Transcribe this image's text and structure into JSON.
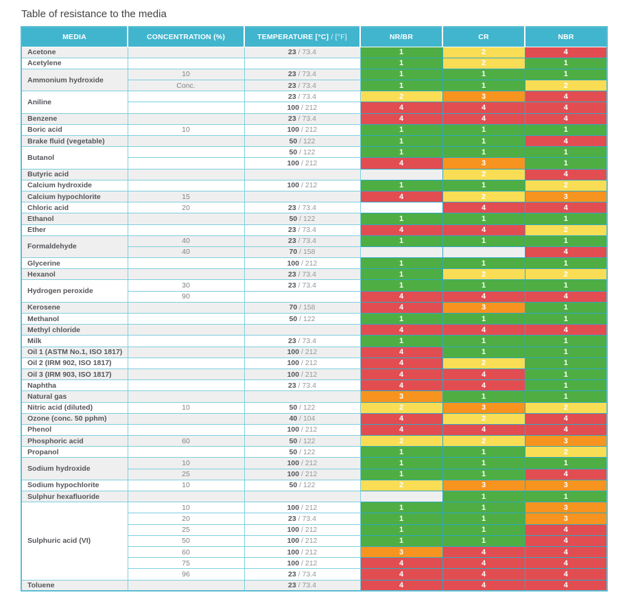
{
  "page_title": "Table of resistance to the media",
  "colors": {
    "header_bg": "#41b5ce",
    "shade_row_bg": "#efefef",
    "plain_row_bg": "#ffffff",
    "grid_border": "#7ccee0",
    "rating_border": "#2ea8c5",
    "rating_1_green": "#4fae43",
    "rating_2_yellow": "#f8dd55",
    "rating_3_orange": "#f6941f",
    "rating_4_red": "#e24d52"
  },
  "header": {
    "media": "MEDIA",
    "concentration": "CONCENTRATION (%)",
    "temperature_main": "TEMPERATURE [°C]",
    "temperature_light": "/ [°F]",
    "nr_br": "NR/BR",
    "cr": "CR",
    "nbr": "NBR"
  },
  "table": {
    "rating_colors": {
      "1": "#4fae43",
      "2": "#f8dd55",
      "3": "#f6941f",
      "4": "#e24d52"
    },
    "groups": [
      {
        "media": "Acetone",
        "rows": [
          {
            "conc": "",
            "temp_c": "23",
            "temp_f": "73.4",
            "nr_br": 1,
            "cr": 2,
            "nbr": 4
          }
        ]
      },
      {
        "media": "Acetylene",
        "rows": [
          {
            "conc": "",
            "temp_c": "",
            "temp_f": "",
            "nr_br": 1,
            "cr": 2,
            "nbr": 1
          }
        ]
      },
      {
        "media": "Ammonium hydroxide",
        "rows": [
          {
            "conc": "10",
            "temp_c": "23",
            "temp_f": "73.4",
            "nr_br": 1,
            "cr": 1,
            "nbr": 1
          },
          {
            "conc": "Conc.",
            "temp_c": "23",
            "temp_f": "73.4",
            "nr_br": 1,
            "cr": 1,
            "nbr": 2
          }
        ]
      },
      {
        "media": "Aniline",
        "rows": [
          {
            "conc": "",
            "temp_c": "23",
            "temp_f": "73.4",
            "nr_br": 2,
            "cr": 3,
            "nbr": 4
          },
          {
            "conc": "",
            "temp_c": "100",
            "temp_f": "212",
            "nr_br": 4,
            "cr": 4,
            "nbr": 4
          }
        ]
      },
      {
        "media": "Benzene",
        "rows": [
          {
            "conc": "",
            "temp_c": "23",
            "temp_f": "73.4",
            "nr_br": 4,
            "cr": 4,
            "nbr": 4
          }
        ]
      },
      {
        "media": "Boric acid",
        "rows": [
          {
            "conc": "10",
            "temp_c": "100",
            "temp_f": "212",
            "nr_br": 1,
            "cr": 1,
            "nbr": 1
          }
        ]
      },
      {
        "media": "Brake fluid (vegetable)",
        "rows": [
          {
            "conc": "",
            "temp_c": "50",
            "temp_f": "122",
            "nr_br": 1,
            "cr": 1,
            "nbr": 4
          }
        ]
      },
      {
        "media": "Butanol",
        "rows": [
          {
            "conc": "",
            "temp_c": "50",
            "temp_f": "122",
            "nr_br": 1,
            "cr": 1,
            "nbr": 1
          },
          {
            "conc": "",
            "temp_c": "100",
            "temp_f": "212",
            "nr_br": 4,
            "cr": 3,
            "nbr": 1
          }
        ]
      },
      {
        "media": "Butyric acid",
        "rows": [
          {
            "conc": "",
            "temp_c": "",
            "temp_f": "",
            "nr_br": null,
            "cr": 2,
            "nbr": 4
          }
        ]
      },
      {
        "media": "Calcium hydroxide",
        "rows": [
          {
            "conc": "",
            "temp_c": "100",
            "temp_f": "212",
            "nr_br": 1,
            "cr": 1,
            "nbr": 2
          }
        ]
      },
      {
        "media": "Calcium hypochlorite",
        "rows": [
          {
            "conc": "15",
            "temp_c": "",
            "temp_f": "",
            "nr_br": 4,
            "cr": 2,
            "nbr": 3
          }
        ]
      },
      {
        "media": "Chloric acid",
        "rows": [
          {
            "conc": "20",
            "temp_c": "23",
            "temp_f": "73.4",
            "nr_br": null,
            "cr": 4,
            "nbr": 4
          }
        ]
      },
      {
        "media": "Ethanol",
        "rows": [
          {
            "conc": "",
            "temp_c": "50",
            "temp_f": "122",
            "nr_br": 1,
            "cr": 1,
            "nbr": 1
          }
        ]
      },
      {
        "media": "Ether",
        "rows": [
          {
            "conc": "",
            "temp_c": "23",
            "temp_f": "73.4",
            "nr_br": 4,
            "cr": 4,
            "nbr": 2
          }
        ]
      },
      {
        "media": "Formaldehyde",
        "rows": [
          {
            "conc": "40",
            "temp_c": "23",
            "temp_f": "73.4",
            "nr_br": 1,
            "cr": 1,
            "nbr": 1
          },
          {
            "conc": "40",
            "temp_c": "70",
            "temp_f": "158",
            "nr_br": null,
            "cr": null,
            "nbr": 4
          }
        ]
      },
      {
        "media": "Glycerine",
        "rows": [
          {
            "conc": "",
            "temp_c": "100",
            "temp_f": "212",
            "nr_br": 1,
            "cr": 1,
            "nbr": 1
          }
        ]
      },
      {
        "media": "Hexanol",
        "rows": [
          {
            "conc": "",
            "temp_c": "23",
            "temp_f": "73.4",
            "nr_br": 1,
            "cr": 2,
            "nbr": 2
          }
        ]
      },
      {
        "media": "Hydrogen peroxide",
        "rows": [
          {
            "conc": "30",
            "temp_c": "23",
            "temp_f": "73.4",
            "nr_br": 1,
            "cr": 1,
            "nbr": 1
          },
          {
            "conc": "90",
            "temp_c": "",
            "temp_f": "",
            "nr_br": 4,
            "cr": 4,
            "nbr": 4
          }
        ]
      },
      {
        "media": "Kerosene",
        "rows": [
          {
            "conc": "",
            "temp_c": "70",
            "temp_f": "158",
            "nr_br": 4,
            "cr": 3,
            "nbr": 1
          }
        ]
      },
      {
        "media": "Methanol",
        "rows": [
          {
            "conc": "",
            "temp_c": "50",
            "temp_f": "122",
            "nr_br": 1,
            "cr": 1,
            "nbr": 1
          }
        ]
      },
      {
        "media": "Methyl chloride",
        "rows": [
          {
            "conc": "",
            "temp_c": "",
            "temp_f": "",
            "nr_br": 4,
            "cr": 4,
            "nbr": 4
          }
        ]
      },
      {
        "media": "Milk",
        "rows": [
          {
            "conc": "",
            "temp_c": "23",
            "temp_f": "73.4",
            "nr_br": 1,
            "cr": 1,
            "nbr": 1
          }
        ]
      },
      {
        "media": "Oil 1 (ASTM No.1, ISO 1817)",
        "rows": [
          {
            "conc": "",
            "temp_c": "100",
            "temp_f": "212",
            "nr_br": 4,
            "cr": 1,
            "nbr": 1
          }
        ]
      },
      {
        "media": "Oil 2 (IRM 902, ISO 1817)",
        "rows": [
          {
            "conc": "",
            "temp_c": "100",
            "temp_f": "212",
            "nr_br": 4,
            "cr": 2,
            "nbr": 1
          }
        ]
      },
      {
        "media": "Oil 3 (IRM 903, ISO 1817)",
        "rows": [
          {
            "conc": "",
            "temp_c": "100",
            "temp_f": "212",
            "nr_br": 4,
            "cr": 4,
            "nbr": 1
          }
        ]
      },
      {
        "media": "Naphtha",
        "rows": [
          {
            "conc": "",
            "temp_c": "23",
            "temp_f": "73.4",
            "nr_br": 4,
            "cr": 4,
            "nbr": 1
          }
        ]
      },
      {
        "media": "Natural gas",
        "rows": [
          {
            "conc": "",
            "temp_c": "",
            "temp_f": "",
            "nr_br": 3,
            "cr": 1,
            "nbr": 1
          }
        ]
      },
      {
        "media": "Nitric acid (diluted)",
        "rows": [
          {
            "conc": "10",
            "temp_c": "50",
            "temp_f": "122",
            "nr_br": 2,
            "cr": 3,
            "nbr": 2
          }
        ]
      },
      {
        "media": "Ozone (conc. 50 pphm)",
        "rows": [
          {
            "conc": "",
            "temp_c": "40",
            "temp_f": "104",
            "nr_br": 4,
            "cr": 2,
            "nbr": 4
          }
        ]
      },
      {
        "media": "Phenol",
        "rows": [
          {
            "conc": "",
            "temp_c": "100",
            "temp_f": "212",
            "nr_br": 4,
            "cr": 4,
            "nbr": 4
          }
        ]
      },
      {
        "media": "Phosphoric acid",
        "rows": [
          {
            "conc": "60",
            "temp_c": "50",
            "temp_f": "122",
            "nr_br": 2,
            "cr": 2,
            "nbr": 3
          }
        ]
      },
      {
        "media": "Propanol",
        "rows": [
          {
            "conc": "",
            "temp_c": "50",
            "temp_f": "122",
            "nr_br": 1,
            "cr": 1,
            "nbr": 2
          }
        ]
      },
      {
        "media": "Sodium hydroxide",
        "rows": [
          {
            "conc": "10",
            "temp_c": "100",
            "temp_f": "212",
            "nr_br": 1,
            "cr": 1,
            "nbr": 1
          },
          {
            "conc": "25",
            "temp_c": "100",
            "temp_f": "212",
            "nr_br": 1,
            "cr": 1,
            "nbr": 4
          }
        ]
      },
      {
        "media": "Sodium hypochlorite",
        "rows": [
          {
            "conc": "10",
            "temp_c": "50",
            "temp_f": "122",
            "nr_br": 2,
            "cr": 3,
            "nbr": 3
          }
        ]
      },
      {
        "media": "Sulphur hexafluoride",
        "rows": [
          {
            "conc": "",
            "temp_c": "",
            "temp_f": "",
            "nr_br": null,
            "cr": 1,
            "nbr": 1
          }
        ]
      },
      {
        "media": "Sulphuric acid (VI)",
        "rows": [
          {
            "conc": "10",
            "temp_c": "100",
            "temp_f": "212",
            "nr_br": 1,
            "cr": 1,
            "nbr": 3
          },
          {
            "conc": "20",
            "temp_c": "23",
            "temp_f": "73.4",
            "nr_br": 1,
            "cr": 1,
            "nbr": 3
          },
          {
            "conc": "25",
            "temp_c": "100",
            "temp_f": "212",
            "nr_br": 1,
            "cr": 1,
            "nbr": 4
          },
          {
            "conc": "50",
            "temp_c": "100",
            "temp_f": "212",
            "nr_br": 1,
            "cr": 1,
            "nbr": 4
          },
          {
            "conc": "60",
            "temp_c": "100",
            "temp_f": "212",
            "nr_br": 3,
            "cr": 4,
            "nbr": 4
          },
          {
            "conc": "75",
            "temp_c": "100",
            "temp_f": "212",
            "nr_br": 4,
            "cr": 4,
            "nbr": 4
          },
          {
            "conc": "96",
            "temp_c": "23",
            "temp_f": "73.4",
            "nr_br": 4,
            "cr": 4,
            "nbr": 4
          }
        ]
      },
      {
        "media": "Toluene",
        "rows": [
          {
            "conc": "",
            "temp_c": "23",
            "temp_f": "73.4",
            "nr_br": 4,
            "cr": 4,
            "nbr": 4
          }
        ]
      }
    ]
  }
}
